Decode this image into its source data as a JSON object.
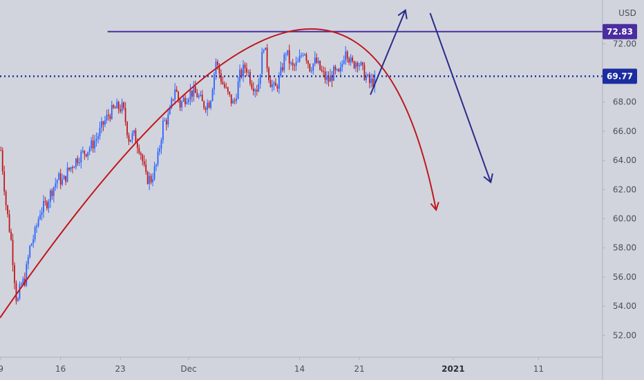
{
  "chart_data": {
    "type": "candlestick",
    "currency": "USD",
    "y_axis": {
      "ylim": [
        50.5,
        75.0
      ],
      "ticks": [
        "52.00",
        "54.00",
        "56.00",
        "58.00",
        "60.00",
        "62.00",
        "64.00",
        "66.00",
        "68.00",
        "70.00",
        "72.00"
      ]
    },
    "x_axis": {
      "ticks": [
        {
          "label": "9",
          "day": 0
        },
        {
          "label": "16",
          "day": 7
        },
        {
          "label": "23",
          "day": 14
        },
        {
          "label": "Dec",
          "day": 22
        },
        {
          "label": "14",
          "day": 35
        },
        {
          "label": "21",
          "day": 42
        },
        {
          "label": "2021",
          "day": 53,
          "bold": true
        },
        {
          "label": "11",
          "day": 63
        }
      ],
      "range_days": [
        -0.1,
        70.5
      ]
    },
    "price_lines": [
      {
        "name": "resistance",
        "value": 72.83,
        "style": "solid",
        "color": "#4a2ea0",
        "from_day": 12.5,
        "to_day": 70.5
      },
      {
        "name": "current",
        "value": 69.77,
        "style": "dotted",
        "color": "#1c2da0",
        "from_day": -0.1,
        "to_day": 70.5
      }
    ],
    "price_labels": [
      {
        "text": "72.83",
        "value": 72.83,
        "color": "#4a2ea0"
      },
      {
        "text": "69.77",
        "value": 69.77,
        "color": "#1c2da0"
      }
    ],
    "series": [
      {
        "type": "candles",
        "up_color": "#2962ff",
        "down_color": "#c0161e",
        "close_path": [
          [
            0.0,
            64.7
          ],
          [
            0.6,
            61.0
          ],
          [
            1.2,
            58.5
          ],
          [
            1.9,
            54.0
          ],
          [
            2.3,
            55.4
          ],
          [
            2.8,
            55.8
          ],
          [
            3.4,
            58.0
          ],
          [
            4.0,
            59.0
          ],
          [
            4.6,
            60.5
          ],
          [
            5.3,
            61.0
          ],
          [
            6.0,
            62.0
          ],
          [
            6.7,
            62.8
          ],
          [
            7.3,
            62.5
          ],
          [
            7.8,
            63.2
          ],
          [
            8.5,
            63.8
          ],
          [
            9.2,
            64.3
          ],
          [
            9.9,
            64.6
          ],
          [
            10.6,
            65.0
          ],
          [
            11.3,
            65.6
          ],
          [
            12.0,
            66.5
          ],
          [
            12.7,
            67.2
          ],
          [
            13.5,
            67.6
          ],
          [
            14.3,
            67.6
          ],
          [
            15.0,
            65.5
          ],
          [
            15.6,
            65.7
          ],
          [
            16.3,
            64.8
          ],
          [
            17.0,
            62.8
          ],
          [
            17.6,
            62.7
          ],
          [
            18.3,
            63.8
          ],
          [
            19.0,
            66.5
          ],
          [
            19.7,
            67.0
          ],
          [
            20.4,
            69.0
          ],
          [
            21.0,
            67.8
          ],
          [
            21.7,
            68.4
          ],
          [
            22.3,
            68.7
          ],
          [
            23.0,
            68.5
          ],
          [
            23.7,
            67.8
          ],
          [
            24.5,
            68.0
          ],
          [
            25.2,
            70.8
          ],
          [
            25.9,
            69.4
          ],
          [
            26.6,
            68.5
          ],
          [
            27.3,
            67.8
          ],
          [
            28.0,
            69.8
          ],
          [
            28.7,
            70.5
          ],
          [
            29.4,
            69.3
          ],
          [
            30.1,
            68.9
          ],
          [
            30.8,
            72.0
          ],
          [
            31.5,
            69.5
          ],
          [
            32.1,
            68.8
          ],
          [
            32.7,
            69.7
          ],
          [
            33.4,
            71.5
          ],
          [
            34.1,
            70.3
          ],
          [
            34.8,
            70.6
          ],
          [
            35.5,
            71.7
          ],
          [
            36.2,
            70.4
          ],
          [
            36.9,
            70.8
          ],
          [
            37.6,
            70.0
          ],
          [
            38.3,
            69.4
          ],
          [
            39.0,
            70.0
          ],
          [
            39.7,
            69.8
          ],
          [
            40.4,
            71.8
          ],
          [
            41.1,
            70.5
          ],
          [
            41.8,
            70.9
          ],
          [
            42.5,
            70.0
          ],
          [
            43.2,
            69.3
          ],
          [
            43.8,
            69.5
          ]
        ]
      },
      {
        "type": "annotation-arc",
        "color": "#c0161e",
        "points": [
          [
            -0.1,
            53.2
          ],
          [
            33.5,
            72.8
          ],
          [
            51.0,
            60.6
          ]
        ]
      },
      {
        "type": "annotation-arrow",
        "color": "#2a2a8a",
        "points": [
          [
            43.3,
            68.5
          ],
          [
            47.4,
            74.3
          ]
        ]
      },
      {
        "type": "annotation-arrow",
        "color": "#2a2a8a",
        "points": [
          [
            50.3,
            74.1
          ],
          [
            57.4,
            62.5
          ]
        ]
      }
    ]
  }
}
